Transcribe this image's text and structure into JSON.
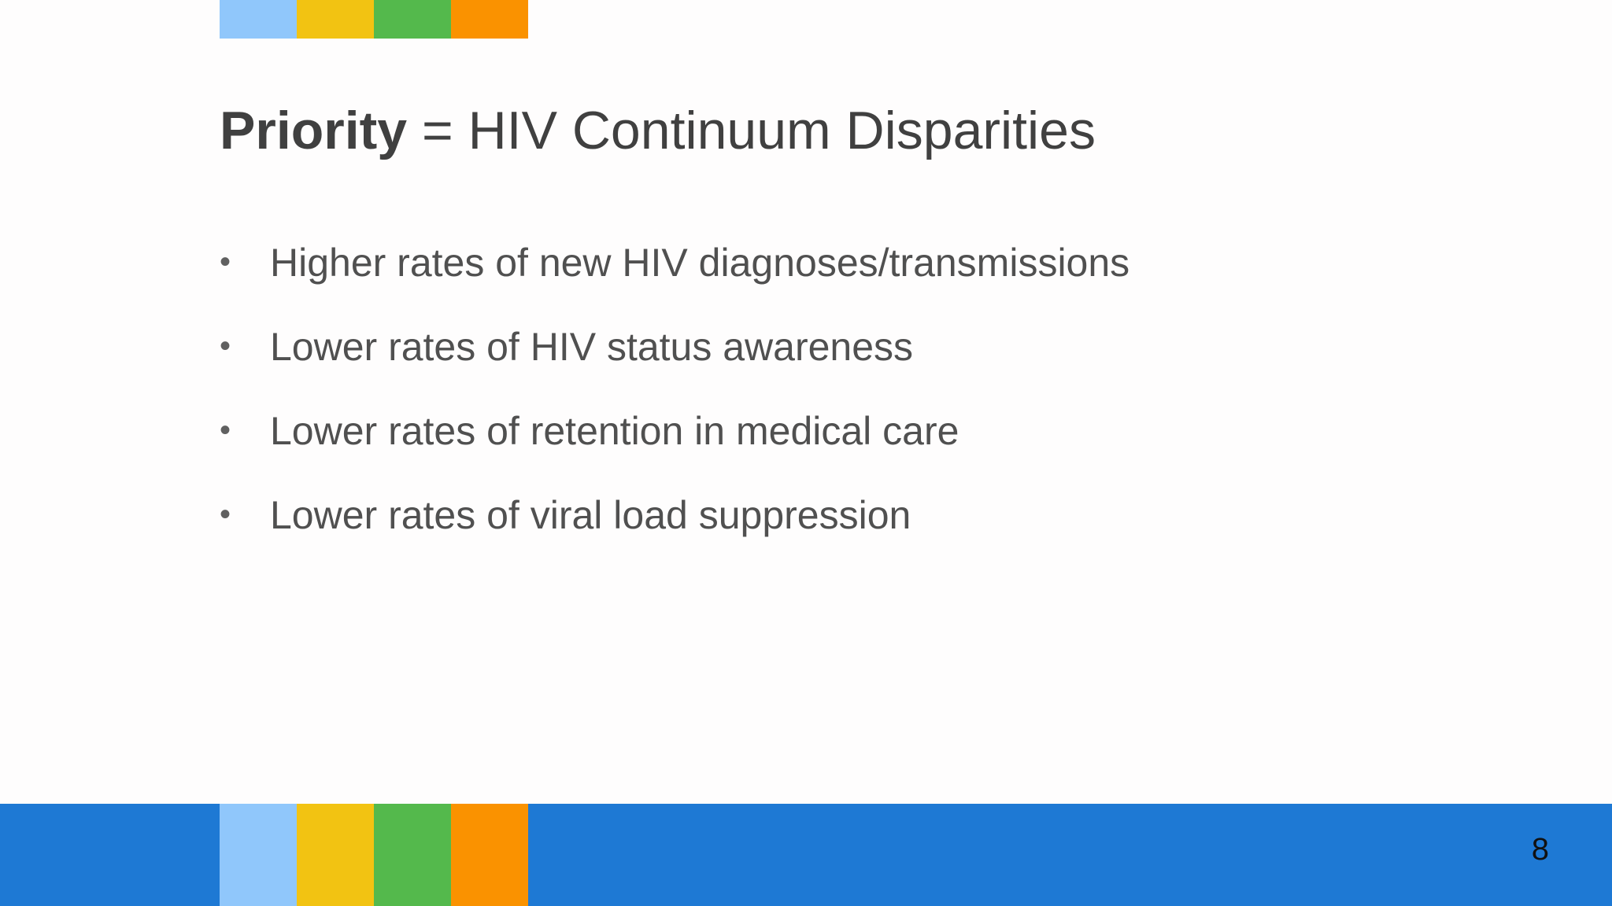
{
  "colors": {
    "strip": [
      "#90c7fb",
      "#f2c312",
      "#54b94c",
      "#fa9200"
    ],
    "bottom_bar": "#1e79d4",
    "title_text": "#404040",
    "body_text": "#505050"
  },
  "slide": {
    "title_bold": "Priority",
    "title_rest": " = HIV Continuum Disparities",
    "bullet_char": "•",
    "bullets": [
      "Higher rates of new HIV diagnoses/transmissions",
      "Lower rates of HIV status awareness",
      "Lower rates of retention in medical care",
      "Lower rates of viral load suppression"
    ],
    "page_number": "8"
  }
}
